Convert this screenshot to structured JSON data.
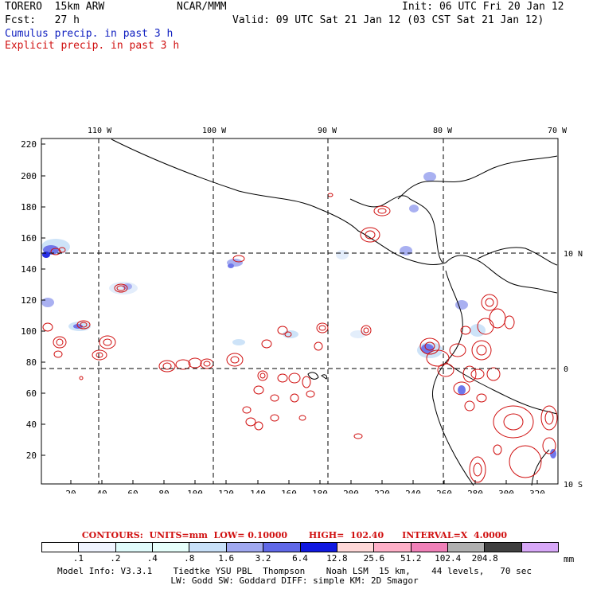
{
  "header": {
    "model_name": "TORERO  15km ARW",
    "org": "NCAR/MMM",
    "init": "Init: 06 UTC Fri 20 Jan 12",
    "forecast": "Fcst:   27 h",
    "valid": "Valid: 09 UTC Sat 21 Jan 12 (03 CST Sat 21 Jan 12)",
    "cumulus_label": "Cumulus precip. in past 3 h",
    "explicit_label": "Explicit precip. in past 3 h",
    "cumulus_color": "#1020c0",
    "explicit_color": "#d01010"
  },
  "map": {
    "top_longitude_labels": [
      "110 W",
      "100 W",
      "90 W",
      "80 W",
      "70 W"
    ],
    "right_latitude_labels": [
      "10 N",
      "0",
      "10 S"
    ],
    "left_grid_labels": [
      "220",
      "200",
      "180",
      "160",
      "140",
      "120",
      "100",
      "80",
      "60",
      "40",
      "20"
    ],
    "bottom_grid_labels": [
      "20",
      "40",
      "60",
      "80",
      "100",
      "120",
      "140",
      "160",
      "180",
      "200",
      "220",
      "240",
      "260",
      "280",
      "300",
      "320"
    ]
  },
  "contours_text": "CONTOURS:  UNITS=mm  LOW= 0.10000       HIGH=  102.40      INTERVAL=X  4.0000",
  "legend": {
    "colors": [
      "#ffffff",
      "#f0f4ff",
      "#e0fbfb",
      "#e6fffb",
      "#c8e0f8",
      "#a0a8f0",
      "#6068e8",
      "#1018e0",
      "#ffd8d8",
      "#ffb0c8",
      "#f080b8",
      "#b0b0b0",
      "#404040",
      "#d8a8f8"
    ],
    "labels": [
      ".1",
      ".2",
      ".4",
      ".8",
      "1.6",
      "3.2",
      "6.4",
      "12.8",
      "25.6",
      "51.2",
      "102.4",
      "204.8"
    ],
    "unit": "mm"
  },
  "model_info": {
    "line1": "Model Info: V3.3.1    Tiedtke YSU PBL  Thompson    Noah LSM  15 km,    44 levels,   70 sec",
    "line2": "LW: Godd SW: Goddard DIFF: simple KM: 2D Smagor"
  }
}
